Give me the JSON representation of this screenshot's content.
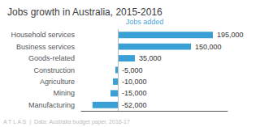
{
  "chart_data": {
    "type": "bar",
    "orientation": "horizontal",
    "title": "Jobs growth in Australia, 2015-2016",
    "categories": [
      "Household services",
      "Business services",
      "Goods-related",
      "Construction",
      "Agriculture",
      "Mining",
      "Manufacturing"
    ],
    "values": [
      195000,
      150000,
      35000,
      -5000,
      -10000,
      -15000,
      -52000
    ],
    "value_labels": [
      "195,000",
      "150,000",
      "35,000",
      "-5,000",
      "-10,000",
      "-15,000",
      "-52,000"
    ],
    "data_labels": true,
    "color": "#3a9fd5",
    "xlim": [
      -75000,
      225000
    ],
    "tick_labels": "y",
    "grid": false,
    "annotations": [
      {
        "text": "Jobs added",
        "color": "#4da6d9"
      },
      {
        "text": "A T L A S  |  Data: Australia budget paper, 2016-17",
        "color": "#bbbbbb"
      }
    ]
  }
}
